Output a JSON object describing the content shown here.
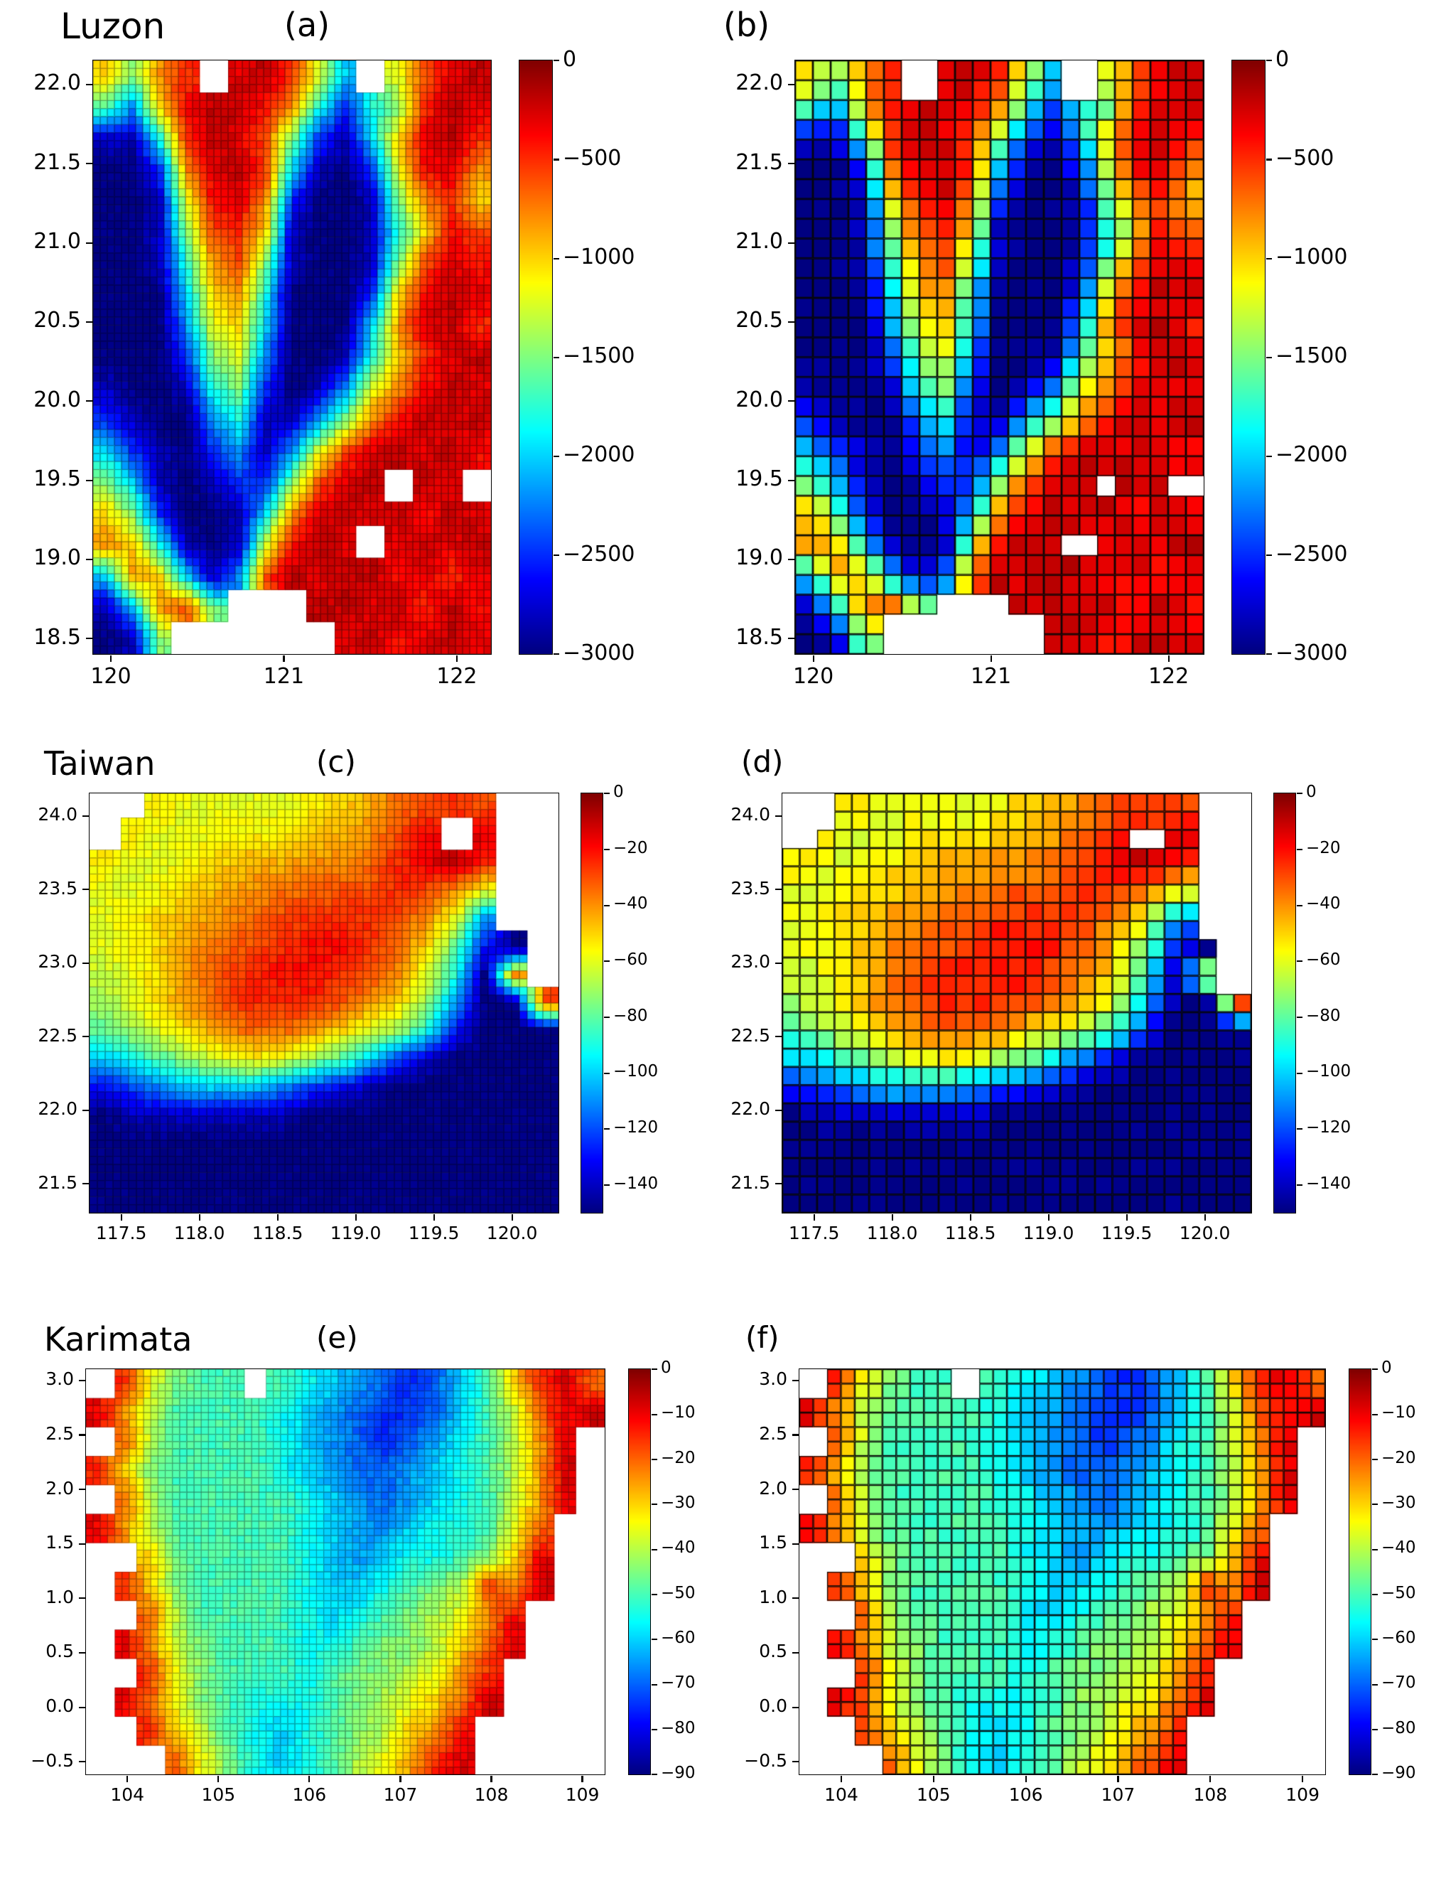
{
  "figure": {
    "background": "#ffffff",
    "colormap": "jet",
    "land_color": "#ffffff",
    "description": "Bathymetry (m) on fine and coarse model grids for three regions"
  },
  "chart_data": [
    {
      "type": "heatmap",
      "region": "Luzon",
      "panel_labels": [
        "(a)",
        "(b)"
      ],
      "xlabel": "",
      "ylabel": "",
      "x_range": [
        119.9,
        122.2
      ],
      "y_range": [
        18.4,
        22.15
      ],
      "x_ticks": {
        "values": [
          120,
          121,
          122
        ],
        "labels": [
          "120",
          "121",
          "122"
        ]
      },
      "y_ticks": {
        "values": [
          22.0,
          21.5,
          21.0,
          20.5,
          20.0,
          19.5,
          19.0,
          18.5
        ],
        "labels": [
          "22.0",
          "21.5",
          "21.0",
          "20.5",
          "20.0",
          "19.5",
          "19.0",
          "18.5"
        ]
      },
      "colorbar": {
        "vmax": 0,
        "vmin": -3000,
        "tick_values": [
          0,
          -500,
          -1000,
          -1500,
          -2000,
          -2500,
          -3000
        ],
        "tick_labels": [
          "0",
          "−500",
          "−1000",
          "−1500",
          "−2000",
          "−2500",
          "−3000"
        ]
      },
      "unit": "m",
      "land_value": null,
      "render_cells": {
        "fine": [
          56,
          74
        ],
        "coarse": [
          23,
          30
        ]
      },
      "grid_rows_top_to_bottom": [
        [
          -1000,
          -1500,
          -800,
          -500,
          null,
          -300,
          -200,
          -500,
          -1200,
          -2000,
          null,
          -1200,
          -600,
          -300,
          -200
        ],
        [
          -1600,
          -2200,
          -1000,
          -400,
          -200,
          -200,
          -400,
          -800,
          -1800,
          -2500,
          -1800,
          -1500,
          -500,
          -200,
          -300
        ],
        [
          -2800,
          -2800,
          -1800,
          -500,
          -200,
          -300,
          -600,
          -1500,
          -2500,
          -2800,
          -2000,
          -1000,
          -300,
          -200,
          -500
        ],
        [
          -3000,
          -3000,
          -2500,
          -800,
          -300,
          -200,
          -500,
          -2000,
          -2800,
          -3000,
          -2500,
          -1200,
          -400,
          -300,
          -800
        ],
        [
          -3000,
          -3000,
          -2800,
          -1200,
          -400,
          -300,
          -800,
          -2500,
          -3000,
          -3000,
          -2800,
          -1500,
          -800,
          -500,
          -1000
        ],
        [
          -3000,
          -3000,
          -2800,
          -1500,
          -600,
          -500,
          -1000,
          -2800,
          -3000,
          -3000,
          -2800,
          -1800,
          -1000,
          -400,
          -600
        ],
        [
          -3000,
          -3000,
          -2800,
          -1800,
          -800,
          -600,
          -1500,
          -2800,
          -3000,
          -3000,
          -2800,
          -1500,
          -600,
          -300,
          -400
        ],
        [
          -3000,
          -3000,
          -3000,
          -2000,
          -1000,
          -800,
          -1800,
          -3000,
          -3000,
          -3000,
          -2500,
          -1000,
          -400,
          -200,
          -300
        ],
        [
          -3000,
          -3000,
          -3000,
          -2200,
          -1200,
          -1000,
          -2000,
          -3000,
          -3000,
          -3000,
          -2000,
          -800,
          -300,
          -200,
          -500
        ],
        [
          -3000,
          -3000,
          -3000,
          -2500,
          -1500,
          -1200,
          -2200,
          -3000,
          -3000,
          -2800,
          -1800,
          -1000,
          -500,
          -300,
          -200
        ],
        [
          -2800,
          -3000,
          -3000,
          -2800,
          -1800,
          -1500,
          -2500,
          -3000,
          -2800,
          -2200,
          -1200,
          -800,
          -400,
          -200,
          -300
        ],
        [
          -2500,
          -2800,
          -3000,
          -3000,
          -2200,
          -1800,
          -2800,
          -2800,
          -2200,
          -1500,
          -800,
          -400,
          -200,
          -300,
          -200
        ],
        [
          -2000,
          -2500,
          -2800,
          -3000,
          -2500,
          -2200,
          -2800,
          -2200,
          -1200,
          -600,
          -300,
          -200,
          -300,
          -200,
          -400
        ],
        [
          -1500,
          -2000,
          -2800,
          -3000,
          -2800,
          -2500,
          -2500,
          -1500,
          -600,
          -300,
          -200,
          null,
          -200,
          -300,
          null
        ],
        [
          -1000,
          -1500,
          -2500,
          -3000,
          -3000,
          -2800,
          -2000,
          -800,
          -300,
          -200,
          -300,
          -200,
          -400,
          -200,
          -300
        ],
        [
          -800,
          -1000,
          -1800,
          -2800,
          -3000,
          -2800,
          -1200,
          -400,
          -200,
          -300,
          null,
          -300,
          -200,
          -300,
          -200
        ],
        [
          -2000,
          -800,
          -1000,
          -2000,
          -2800,
          -2200,
          -600,
          -200,
          -300,
          -200,
          -200,
          -400,
          -300,
          -500,
          -300
        ],
        [
          -2800,
          -2000,
          -800,
          -600,
          -1500,
          null,
          null,
          null,
          -200,
          -200,
          -300,
          -200,
          -500,
          -200,
          -400
        ],
        [
          -3000,
          -2800,
          -1500,
          null,
          null,
          null,
          null,
          null,
          null,
          -300,
          -200,
          -400,
          -300,
          -200,
          -300
        ]
      ]
    },
    {
      "type": "heatmap",
      "region": "Taiwan",
      "panel_labels": [
        "(c)",
        "(d)"
      ],
      "xlabel": "",
      "ylabel": "",
      "x_range": [
        117.3,
        120.3
      ],
      "y_range": [
        21.3,
        24.15
      ],
      "x_ticks": {
        "values": [
          117.5,
          118.0,
          118.5,
          119.0,
          119.5,
          120.0
        ],
        "labels": [
          "117.5",
          "118.0",
          "118.5",
          "119.0",
          "119.5",
          "120.0"
        ]
      },
      "y_ticks": {
        "values": [
          24.0,
          23.5,
          23.0,
          22.5,
          22.0,
          21.5
        ],
        "labels": [
          "24.0",
          "23.5",
          "23.0",
          "22.5",
          "22.0",
          "21.5"
        ]
      },
      "colorbar": {
        "vmax": 0,
        "vmin": -150,
        "tick_values": [
          0,
          -20,
          -40,
          -60,
          -80,
          -100,
          -120,
          -140
        ],
        "tick_labels": [
          "0",
          "−20",
          "−40",
          "−60",
          "−80",
          "−100",
          "−120",
          "−140"
        ]
      },
      "unit": "m",
      "land_value": null,
      "render_cells": {
        "fine": [
          60,
          52
        ],
        "coarse": [
          27,
          23
        ]
      },
      "grid_rows_top_to_bottom": [
        [
          null,
          null,
          -55,
          -60,
          -60,
          -60,
          -60,
          -55,
          -50,
          -45,
          -35,
          -30,
          -25,
          -30,
          null,
          null
        ],
        [
          null,
          -55,
          -60,
          -60,
          -55,
          -55,
          -55,
          -50,
          -45,
          -40,
          -30,
          -20,
          null,
          -15,
          null,
          null
        ],
        [
          -55,
          -60,
          -60,
          -55,
          -50,
          -45,
          -45,
          -40,
          -40,
          -35,
          -25,
          -15,
          -10,
          -25,
          null,
          null
        ],
        [
          -60,
          -60,
          -55,
          -50,
          -45,
          -40,
          -35,
          -35,
          -30,
          -30,
          -25,
          -30,
          -40,
          -60,
          null,
          null
        ],
        [
          -60,
          -55,
          -50,
          -45,
          -40,
          -35,
          -30,
          -25,
          -25,
          -25,
          -30,
          -40,
          -60,
          -110,
          null,
          null
        ],
        [
          -60,
          -55,
          -50,
          -40,
          -35,
          -30,
          -25,
          -20,
          -20,
          -25,
          -35,
          -50,
          -80,
          -130,
          -150,
          null
        ],
        [
          -65,
          -60,
          -50,
          -40,
          -30,
          -25,
          -20,
          -20,
          -25,
          -30,
          -40,
          -60,
          -90,
          -150,
          -40,
          null
        ],
        [
          -70,
          -60,
          -50,
          -40,
          -30,
          -25,
          -25,
          -25,
          -30,
          -40,
          -50,
          -70,
          -110,
          -150,
          -150,
          -30
        ],
        [
          -80,
          -70,
          -60,
          -50,
          -40,
          -35,
          -35,
          -40,
          -50,
          -60,
          -70,
          -90,
          -130,
          -150,
          -150,
          -150
        ],
        [
          -100,
          -90,
          -80,
          -70,
          -60,
          -55,
          -60,
          -70,
          -80,
          -100,
          -120,
          -140,
          -150,
          -150,
          -150,
          -150
        ],
        [
          -130,
          -120,
          -110,
          -100,
          -100,
          -100,
          -110,
          -120,
          -130,
          -140,
          -150,
          -150,
          -150,
          -150,
          -150,
          -150
        ],
        [
          -150,
          -140,
          -140,
          -140,
          -140,
          -140,
          -140,
          -150,
          -150,
          -150,
          -150,
          -150,
          -150,
          -150,
          -150,
          -150
        ],
        [
          -150,
          -150,
          -150,
          -150,
          -150,
          -150,
          -150,
          -150,
          -150,
          -150,
          -150,
          -150,
          -150,
          -150,
          -150,
          -150
        ],
        [
          -150,
          -150,
          -150,
          -150,
          -150,
          -150,
          -150,
          -150,
          -150,
          -150,
          -150,
          -150,
          -150,
          -150,
          -150,
          -150
        ],
        [
          -150,
          -150,
          -150,
          -150,
          -150,
          -150,
          -150,
          -150,
          -150,
          -150,
          -150,
          -150,
          -150,
          -150,
          -150,
          -150
        ]
      ]
    },
    {
      "type": "heatmap",
      "region": "Karimata",
      "panel_labels": [
        "(e)",
        "(f)"
      ],
      "xlabel": "",
      "ylabel": "",
      "x_range": [
        103.55,
        109.25
      ],
      "y_range": [
        -0.62,
        3.1
      ],
      "x_ticks": {
        "values": [
          104,
          105,
          106,
          107,
          108,
          109
        ],
        "labels": [
          "104",
          "105",
          "106",
          "107",
          "108",
          "109"
        ]
      },
      "y_ticks": {
        "values": [
          3.0,
          2.5,
          2.0,
          1.5,
          1.0,
          0.5,
          0.0,
          -0.5
        ],
        "labels": [
          "3.0",
          "2.5",
          "2.0",
          "1.5",
          "1.0",
          "0.5",
          "0.0",
          "−0.5"
        ]
      },
      "colorbar": {
        "vmax": 0,
        "vmin": -90,
        "tick_values": [
          0,
          -10,
          -20,
          -30,
          -40,
          -50,
          -60,
          -70,
          -80,
          -90
        ],
        "tick_labels": [
          "0",
          "−10",
          "−20",
          "−30",
          "−40",
          "−50",
          "−60",
          "−70",
          "−80",
          "−90"
        ]
      },
      "unit": "m",
      "land_value": null,
      "render_cells": {
        "fine": [
          72,
          56
        ],
        "coarse": [
          38,
          28
        ]
      },
      "grid_rows_top_to_bottom": [
        [
          null,
          -15,
          -35,
          -45,
          -50,
          -50,
          null,
          -50,
          -55,
          -60,
          -65,
          -70,
          -75,
          -70,
          -60,
          -50,
          -30,
          -15,
          -8,
          -20
        ],
        [
          -10,
          -25,
          -40,
          -50,
          -50,
          -50,
          -50,
          -55,
          -60,
          -65,
          -70,
          -75,
          -75,
          -70,
          -60,
          -50,
          -40,
          -20,
          -10,
          -8
        ],
        [
          null,
          -20,
          -40,
          -50,
          -50,
          -50,
          -50,
          -55,
          -60,
          -65,
          -70,
          -75,
          -70,
          -65,
          -55,
          -50,
          -40,
          -25,
          -10,
          null
        ],
        [
          -15,
          -30,
          -45,
          -50,
          -50,
          -50,
          -50,
          -55,
          -60,
          -65,
          -70,
          -70,
          -65,
          -60,
          -55,
          -50,
          -40,
          -25,
          -8,
          null
        ],
        [
          null,
          -20,
          -40,
          -50,
          -50,
          -50,
          -50,
          -50,
          -55,
          -60,
          -65,
          -70,
          -65,
          -60,
          -55,
          -50,
          -40,
          -25,
          -10,
          null
        ],
        [
          -10,
          -25,
          -40,
          -50,
          -50,
          -50,
          -50,
          -50,
          -55,
          -60,
          -65,
          -65,
          -60,
          -55,
          -55,
          -50,
          -35,
          -20,
          null,
          null
        ],
        [
          null,
          null,
          -30,
          -45,
          -50,
          -50,
          -50,
          -50,
          -55,
          -60,
          -65,
          -60,
          -55,
          -55,
          -50,
          -45,
          -30,
          -10,
          null,
          null
        ],
        [
          null,
          -15,
          -30,
          -45,
          -50,
          -50,
          -50,
          -50,
          -55,
          -60,
          -60,
          -55,
          -50,
          -45,
          -40,
          -15,
          -25,
          -8,
          null,
          null
        ],
        [
          null,
          null,
          -20,
          -40,
          -50,
          -50,
          -50,
          -50,
          -55,
          -60,
          -55,
          -50,
          -45,
          -40,
          -35,
          -25,
          -12,
          null,
          null,
          null
        ],
        [
          null,
          -10,
          -25,
          -40,
          -45,
          -50,
          -50,
          -50,
          -55,
          -55,
          -50,
          -45,
          -45,
          -40,
          -30,
          -20,
          -8,
          null,
          null,
          null
        ],
        [
          null,
          null,
          -15,
          -35,
          -45,
          -50,
          -50,
          -50,
          -55,
          -50,
          -45,
          -45,
          -40,
          -35,
          -25,
          -15,
          null,
          null,
          null,
          null
        ],
        [
          null,
          -10,
          -20,
          -35,
          -45,
          -50,
          -55,
          -55,
          -55,
          -50,
          -45,
          -40,
          -35,
          -30,
          -20,
          -8,
          null,
          null,
          null,
          null
        ],
        [
          null,
          null,
          -15,
          -30,
          -40,
          -50,
          -55,
          -60,
          -55,
          -50,
          -45,
          -40,
          -30,
          -25,
          -12,
          null,
          null,
          null,
          null,
          null
        ],
        [
          null,
          null,
          null,
          -20,
          -35,
          -45,
          -55,
          -60,
          -55,
          -50,
          -40,
          -35,
          -25,
          -15,
          -8,
          null,
          null,
          null,
          null,
          null
        ]
      ]
    }
  ]
}
